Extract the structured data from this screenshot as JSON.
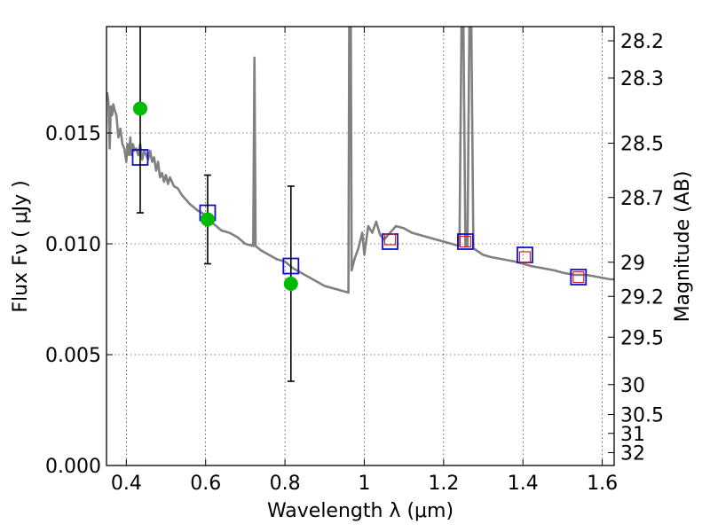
{
  "chart_data": {
    "type": "scatter",
    "xlabel": "Wavelength  λ (μm)",
    "ylabel": "Flux  Fν  ( μJy )",
    "ylabel_right": "Magnitude (AB)",
    "xlim": [
      0.35,
      1.63
    ],
    "ylim": [
      0.0,
      0.0198
    ],
    "x_ticks": [
      0.4,
      0.6,
      0.8,
      1.0,
      1.2,
      1.4,
      1.6
    ],
    "x_tick_labels": [
      "0.4",
      "0.6",
      "0.8",
      "1",
      "1.2",
      "1.4",
      "1.6"
    ],
    "y_ticks": [
      0.0,
      0.005,
      0.01,
      0.015
    ],
    "y_tick_labels": [
      "0.000",
      "0.005",
      "0.010",
      "0.015"
    ],
    "right_axis_ticks": [
      {
        "label": "28.2",
        "flux": 0.01916
      },
      {
        "label": "28.3",
        "flux": 0.01748
      },
      {
        "label": "28.5",
        "flux": 0.01454
      },
      {
        "label": "28.7",
        "flux": 0.01209
      },
      {
        "label": "29",
        "flux": 0.00917
      },
      {
        "label": "29.2",
        "flux": 0.00763
      },
      {
        "label": "29.5",
        "flux": 0.00579
      },
      {
        "label": "30",
        "flux": 0.00365
      },
      {
        "label": "30.5",
        "flux": 0.0023
      },
      {
        "label": "31",
        "flux": 0.00145
      },
      {
        "label": "32",
        "flux": 0.00058
      }
    ],
    "grid": true,
    "series": [
      {
        "type": "line",
        "color": "#808080",
        "points": [
          [
            0.35,
            0.0167
          ],
          [
            0.352,
            0.0168
          ],
          [
            0.355,
            0.0164
          ],
          [
            0.358,
            0.0143
          ],
          [
            0.361,
            0.0162
          ],
          [
            0.364,
            0.0158
          ],
          [
            0.367,
            0.0163
          ],
          [
            0.371,
            0.016
          ],
          [
            0.375,
            0.0158
          ],
          [
            0.38,
            0.0148
          ],
          [
            0.385,
            0.0152
          ],
          [
            0.39,
            0.0145
          ],
          [
            0.395,
            0.0143
          ],
          [
            0.4,
            0.0137
          ],
          [
            0.403,
            0.0145
          ],
          [
            0.407,
            0.014
          ],
          [
            0.41,
            0.0148
          ],
          [
            0.413,
            0.014
          ],
          [
            0.417,
            0.0145
          ],
          [
            0.42,
            0.0142
          ],
          [
            0.425,
            0.0143
          ],
          [
            0.43,
            0.014
          ],
          [
            0.435,
            0.0145
          ],
          [
            0.44,
            0.0138
          ],
          [
            0.445,
            0.0142
          ],
          [
            0.45,
            0.014
          ],
          [
            0.455,
            0.0138
          ],
          [
            0.46,
            0.0142
          ],
          [
            0.465,
            0.0137
          ],
          [
            0.47,
            0.0139
          ],
          [
            0.475,
            0.0133
          ],
          [
            0.48,
            0.0137
          ],
          [
            0.485,
            0.013
          ],
          [
            0.49,
            0.0132
          ],
          [
            0.495,
            0.0128
          ],
          [
            0.5,
            0.0131
          ],
          [
            0.505,
            0.0127
          ],
          [
            0.51,
            0.013
          ],
          [
            0.52,
            0.0126
          ],
          [
            0.53,
            0.0125
          ],
          [
            0.54,
            0.0122
          ],
          [
            0.55,
            0.012
          ],
          [
            0.56,
            0.0118
          ],
          [
            0.58,
            0.0115
          ],
          [
            0.6,
            0.0113
          ],
          [
            0.62,
            0.0109
          ],
          [
            0.64,
            0.0106
          ],
          [
            0.66,
            0.0105
          ],
          [
            0.68,
            0.0103
          ],
          [
            0.7,
            0.01
          ],
          [
            0.72,
            0.0099
          ],
          [
            0.723,
            0.0184
          ],
          [
            0.726,
            0.0099
          ],
          [
            0.74,
            0.0097
          ],
          [
            0.76,
            0.0095
          ],
          [
            0.78,
            0.0093
          ],
          [
            0.8,
            0.0092
          ],
          [
            0.82,
            0.0089
          ],
          [
            0.84,
            0.0087
          ],
          [
            0.86,
            0.0085
          ],
          [
            0.88,
            0.0083
          ],
          [
            0.9,
            0.0081
          ],
          [
            0.92,
            0.008
          ],
          [
            0.94,
            0.0079
          ],
          [
            0.96,
            0.0078
          ],
          [
            0.962,
            0.0198
          ],
          [
            0.966,
            0.0198
          ],
          [
            0.968,
            0.0088
          ],
          [
            0.975,
            0.0093
          ],
          [
            0.985,
            0.0098
          ],
          [
            0.995,
            0.0105
          ],
          [
            1.0,
            0.0095
          ],
          [
            1.01,
            0.0108
          ],
          [
            1.02,
            0.0105
          ],
          [
            1.03,
            0.011
          ],
          [
            1.04,
            0.0104
          ],
          [
            1.05,
            0.0102
          ],
          [
            1.06,
            0.0104
          ],
          [
            1.08,
            0.0108
          ],
          [
            1.1,
            0.0107
          ],
          [
            1.12,
            0.0105
          ],
          [
            1.14,
            0.0104
          ],
          [
            1.16,
            0.0103
          ],
          [
            1.18,
            0.0102
          ],
          [
            1.2,
            0.0101
          ],
          [
            1.22,
            0.01
          ],
          [
            1.24,
            0.0099
          ],
          [
            1.245,
            0.0198
          ],
          [
            1.25,
            0.0198
          ],
          [
            1.255,
            0.0099
          ],
          [
            1.26,
            0.0099
          ],
          [
            1.265,
            0.0198
          ],
          [
            1.27,
            0.0198
          ],
          [
            1.275,
            0.0098
          ],
          [
            1.3,
            0.0095
          ],
          [
            1.32,
            0.0094
          ],
          [
            1.35,
            0.0093
          ],
          [
            1.38,
            0.0092
          ],
          [
            1.4,
            0.0091
          ],
          [
            1.42,
            0.009
          ],
          [
            1.45,
            0.0089
          ],
          [
            1.48,
            0.0088
          ],
          [
            1.5,
            0.0087
          ],
          [
            1.53,
            0.0086
          ],
          [
            1.56,
            0.0086
          ],
          [
            1.59,
            0.0085
          ],
          [
            1.62,
            0.0084
          ],
          [
            1.63,
            0.0084
          ]
        ]
      },
      {
        "type": "scatter",
        "marker": "open-square",
        "color": "#1010cc",
        "points": [
          [
            0.435,
            0.0139
          ],
          [
            0.605,
            0.0114
          ],
          [
            0.815,
            0.009
          ],
          [
            1.065,
            0.0101
          ],
          [
            1.255,
            0.0101
          ],
          [
            1.405,
            0.0095
          ],
          [
            1.54,
            0.0085
          ]
        ]
      },
      {
        "type": "scatter",
        "marker": "open-square",
        "color": "#d02020",
        "points": [
          [
            1.065,
            0.0102
          ],
          [
            1.255,
            0.0101
          ],
          [
            1.405,
            0.0094
          ],
          [
            1.54,
            0.0085
          ]
        ]
      },
      {
        "type": "scatter",
        "marker": "circle-errorbar",
        "color": "#00bb00",
        "points": [
          {
            "x": 0.435,
            "y": 0.0161,
            "ylow": 0.0114,
            "yhigh": 0.0198
          },
          {
            "x": 0.605,
            "y": 0.0111,
            "ylow": 0.0091,
            "yhigh": 0.0131
          },
          {
            "x": 0.815,
            "y": 0.0082,
            "ylow": 0.0038,
            "yhigh": 0.0126
          }
        ]
      }
    ]
  }
}
